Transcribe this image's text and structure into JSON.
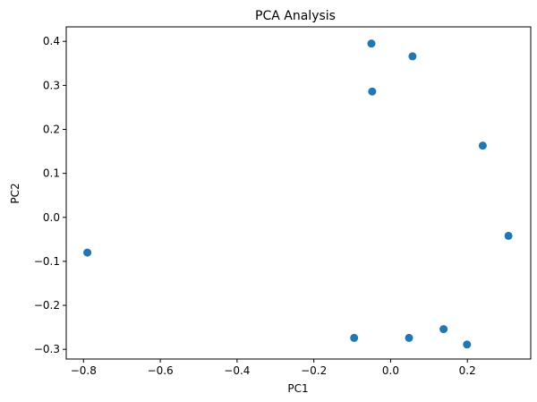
{
  "chart_data": {
    "type": "scatter",
    "title": "PCA Analysis",
    "xlabel": "PC1",
    "ylabel": "PC2",
    "xlim": [
      -0.845,
      0.365
    ],
    "ylim": [
      -0.322,
      0.433
    ],
    "xticks": [
      -0.8,
      -0.6,
      -0.4,
      -0.2,
      0.0,
      0.2
    ],
    "xtick_labels": [
      "−0.8",
      "−0.6",
      "−0.4",
      "−0.2",
      "0.0",
      "0.2"
    ],
    "yticks": [
      -0.3,
      -0.2,
      -0.1,
      0.0,
      0.1,
      0.2,
      0.3,
      0.4
    ],
    "ytick_labels": [
      "−0.3",
      "−0.2",
      "−0.1",
      "0.0",
      "0.1",
      "0.2",
      "0.3",
      "0.4"
    ],
    "grid": false,
    "marker_color": "#1f77b4",
    "points": [
      {
        "x": -0.79,
        "y": -0.08
      },
      {
        "x": -0.05,
        "y": 0.395
      },
      {
        "x": 0.057,
        "y": 0.366
      },
      {
        "x": -0.048,
        "y": 0.286
      },
      {
        "x": 0.24,
        "y": 0.163
      },
      {
        "x": 0.307,
        "y": -0.042
      },
      {
        "x": -0.095,
        "y": -0.274
      },
      {
        "x": 0.048,
        "y": -0.274
      },
      {
        "x": 0.138,
        "y": -0.254
      },
      {
        "x": 0.199,
        "y": -0.289
      }
    ]
  }
}
